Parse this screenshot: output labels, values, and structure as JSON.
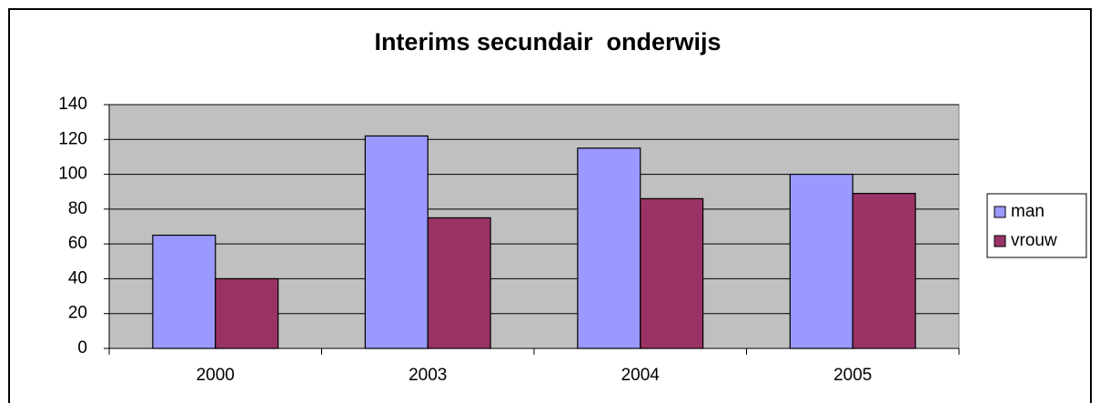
{
  "chart_data": {
    "type": "bar",
    "title": "Interims secundair  onderwijs",
    "categories": [
      "2000",
      "2003",
      "2004",
      "2005"
    ],
    "series": [
      {
        "name": "man",
        "color": "#9999ff",
        "values": [
          65,
          122,
          115,
          100
        ]
      },
      {
        "name": "vrouw",
        "color": "#993366",
        "values": [
          40,
          75,
          86,
          89
        ]
      }
    ],
    "ylim": [
      0,
      140
    ],
    "yticks": [
      0,
      20,
      40,
      60,
      80,
      100,
      120,
      140
    ],
    "grid": true,
    "legend": "right"
  }
}
